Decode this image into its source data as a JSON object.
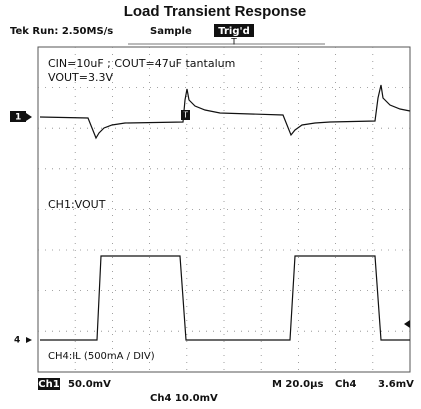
{
  "title": "Load Transient Response",
  "header": {
    "status": "Tek Run: 2.50MS/s",
    "mode": "Sample",
    "trigger": "Trig'd",
    "trigger_marker": "T"
  },
  "annotations": {
    "caps": "CIN=10uF ; COUT=47uF tantalum",
    "vout": "VOUT=3.3V",
    "ch1_label": "CH1:VOUT",
    "ch4_label": "CH4:IL (500mA / DIV)",
    "ch1_marker": "1",
    "ch4_marker": "4",
    "trig_point": "T"
  },
  "footer": {
    "ch1_box": "Ch1",
    "ch1_scale": "50.0mV",
    "ch4_scale": "Ch4  10.0mV",
    "timebase": "M 20.0µs",
    "trigger_source": "Ch4",
    "trigger_level": "3.6mV"
  }
}
